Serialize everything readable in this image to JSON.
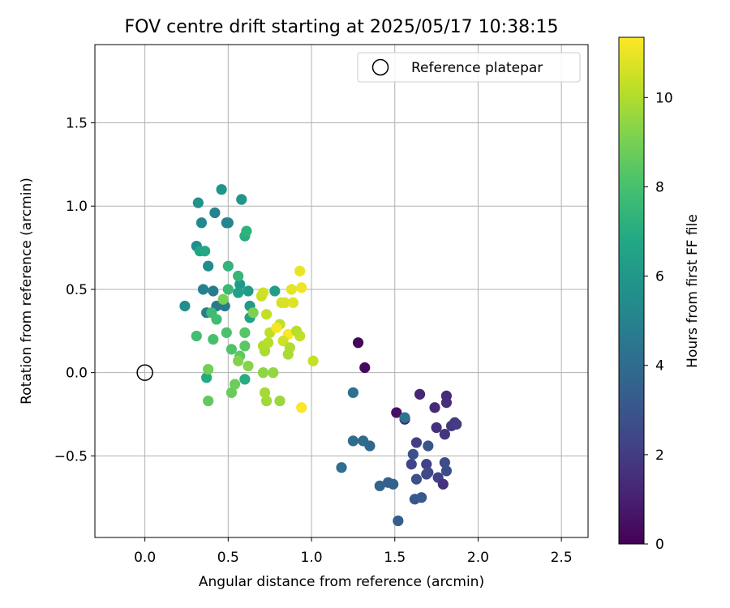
{
  "chart_data": {
    "type": "scatter",
    "title": "FOV centre drift starting at 2025/05/17 10:38:15",
    "xlabel": "Angular distance from reference (arcmin)",
    "ylabel": "Rotation from reference (arcmin)",
    "xlim": [
      -0.3,
      2.66
    ],
    "ylim": [
      -0.99,
      1.97
    ],
    "xticks": [
      {
        "value": 0.0,
        "label": "0.0"
      },
      {
        "value": 0.5,
        "label": "0.5"
      },
      {
        "value": 1.0,
        "label": "1.0"
      },
      {
        "value": 1.5,
        "label": "1.5"
      },
      {
        "value": 2.0,
        "label": "2.0"
      },
      {
        "value": 2.5,
        "label": "2.5"
      }
    ],
    "yticks": [
      {
        "value": -0.5,
        "label": "−0.5"
      },
      {
        "value": 0.0,
        "label": "0.0"
      },
      {
        "value": 0.5,
        "label": "0.5"
      },
      {
        "value": 1.0,
        "label": "1.0"
      },
      {
        "value": 1.5,
        "label": "1.5"
      }
    ],
    "grid": true,
    "legend": {
      "placement": "upper right",
      "entries": [
        "Reference platepar"
      ]
    },
    "reference_point": {
      "x": 0.0,
      "y": 0.0,
      "label": "Reference platepar",
      "marker": "open-circle",
      "color": "#000000"
    },
    "colorbar": {
      "label": "Hours from first FF file",
      "range": [
        0,
        11.35
      ],
      "ticks": [
        {
          "value": 0,
          "label": "0"
        },
        {
          "value": 2,
          "label": "2"
        },
        {
          "value": 4,
          "label": "4"
        },
        {
          "value": 6,
          "label": "6"
        },
        {
          "value": 8,
          "label": "8"
        },
        {
          "value": 10,
          "label": "10"
        }
      ],
      "colormap": "viridis",
      "stops": [
        "#440154",
        "#482475",
        "#414487",
        "#355f8d",
        "#2a788e",
        "#21918c",
        "#22a884",
        "#44bf70",
        "#7ad151",
        "#bddf26",
        "#fde725"
      ]
    },
    "points": [
      {
        "x": 1.28,
        "y": 0.18,
        "c": 0.2
      },
      {
        "x": 1.32,
        "y": 0.03,
        "c": 0.3
      },
      {
        "x": 1.51,
        "y": -0.24,
        "c": 0.5
      },
      {
        "x": 1.56,
        "y": -0.28,
        "c": 1.0
      },
      {
        "x": 1.65,
        "y": -0.13,
        "c": 1.2
      },
      {
        "x": 1.74,
        "y": -0.21,
        "c": 1.3
      },
      {
        "x": 1.81,
        "y": -0.14,
        "c": 1.4
      },
      {
        "x": 1.81,
        "y": -0.18,
        "c": 1.5
      },
      {
        "x": 1.75,
        "y": -0.33,
        "c": 1.6
      },
      {
        "x": 1.8,
        "y": -0.37,
        "c": 1.7
      },
      {
        "x": 1.84,
        "y": -0.32,
        "c": 1.8
      },
      {
        "x": 1.86,
        "y": -0.3,
        "c": 1.9
      },
      {
        "x": 1.87,
        "y": -0.31,
        "c": 2.0
      },
      {
        "x": 1.63,
        "y": -0.42,
        "c": 2.1
      },
      {
        "x": 1.69,
        "y": -0.55,
        "c": 2.2
      },
      {
        "x": 1.6,
        "y": -0.55,
        "c": 2.3
      },
      {
        "x": 1.7,
        "y": -0.6,
        "c": 2.4
      },
      {
        "x": 1.69,
        "y": -0.61,
        "c": 2.5
      },
      {
        "x": 1.76,
        "y": -0.63,
        "c": 2.2
      },
      {
        "x": 1.79,
        "y": -0.67,
        "c": 1.6
      },
      {
        "x": 1.8,
        "y": -0.54,
        "c": 2.6
      },
      {
        "x": 1.81,
        "y": -0.59,
        "c": 2.7
      },
      {
        "x": 1.63,
        "y": -0.64,
        "c": 2.8
      },
      {
        "x": 1.61,
        "y": -0.49,
        "c": 2.9
      },
      {
        "x": 1.7,
        "y": -0.44,
        "c": 3.0
      },
      {
        "x": 1.62,
        "y": -0.76,
        "c": 3.1
      },
      {
        "x": 1.66,
        "y": -0.75,
        "c": 3.2
      },
      {
        "x": 1.52,
        "y": -0.89,
        "c": 3.3
      },
      {
        "x": 1.46,
        "y": -0.66,
        "c": 3.4
      },
      {
        "x": 1.49,
        "y": -0.67,
        "c": 3.5
      },
      {
        "x": 1.41,
        "y": -0.68,
        "c": 3.7
      },
      {
        "x": 1.35,
        "y": -0.44,
        "c": 3.8
      },
      {
        "x": 1.31,
        "y": -0.41,
        "c": 3.9
      },
      {
        "x": 1.25,
        "y": -0.41,
        "c": 4.0
      },
      {
        "x": 1.18,
        "y": -0.57,
        "c": 4.1
      },
      {
        "x": 1.25,
        "y": -0.12,
        "c": 4.2
      },
      {
        "x": 1.56,
        "y": -0.27,
        "c": 4.3
      },
      {
        "x": 0.43,
        "y": 0.4,
        "c": 4.5
      },
      {
        "x": 0.48,
        "y": 0.4,
        "c": 4.6
      },
      {
        "x": 0.41,
        "y": 0.49,
        "c": 4.7
      },
      {
        "x": 0.37,
        "y": 0.36,
        "c": 4.8
      },
      {
        "x": 0.35,
        "y": 0.5,
        "c": 4.9
      },
      {
        "x": 0.42,
        "y": 0.96,
        "c": 5.0
      },
      {
        "x": 0.49,
        "y": 0.9,
        "c": 5.1
      },
      {
        "x": 0.5,
        "y": 0.9,
        "c": 5.2
      },
      {
        "x": 0.34,
        "y": 0.9,
        "c": 5.3
      },
      {
        "x": 0.38,
        "y": 0.64,
        "c": 5.4
      },
      {
        "x": 0.31,
        "y": 0.76,
        "c": 5.5
      },
      {
        "x": 0.24,
        "y": 0.4,
        "c": 5.6
      },
      {
        "x": 0.32,
        "y": 1.02,
        "c": 5.7
      },
      {
        "x": 0.46,
        "y": 1.1,
        "c": 5.8
      },
      {
        "x": 0.58,
        "y": 1.04,
        "c": 5.9
      },
      {
        "x": 0.57,
        "y": 0.53,
        "c": 6.0
      },
      {
        "x": 0.63,
        "y": 0.4,
        "c": 6.1
      },
      {
        "x": 0.62,
        "y": 0.49,
        "c": 6.2
      },
      {
        "x": 0.78,
        "y": 0.49,
        "c": 6.3
      },
      {
        "x": 0.56,
        "y": 0.48,
        "c": 6.4
      },
      {
        "x": 0.63,
        "y": 0.33,
        "c": 6.5
      },
      {
        "x": 0.33,
        "y": 0.73,
        "c": 6.6
      },
      {
        "x": 0.36,
        "y": 0.73,
        "c": 6.8
      },
      {
        "x": 0.37,
        "y": -0.03,
        "c": 6.9
      },
      {
        "x": 0.6,
        "y": -0.04,
        "c": 7.0
      },
      {
        "x": 0.6,
        "y": 0.82,
        "c": 7.1
      },
      {
        "x": 0.61,
        "y": 0.85,
        "c": 7.3
      },
      {
        "x": 0.5,
        "y": 0.64,
        "c": 7.4
      },
      {
        "x": 0.56,
        "y": 0.58,
        "c": 7.5
      },
      {
        "x": 0.5,
        "y": 0.5,
        "c": 7.6
      },
      {
        "x": 0.4,
        "y": 0.36,
        "c": 7.7
      },
      {
        "x": 0.43,
        "y": 0.32,
        "c": 7.8
      },
      {
        "x": 0.31,
        "y": 0.22,
        "c": 7.9
      },
      {
        "x": 0.41,
        "y": 0.2,
        "c": 8.0
      },
      {
        "x": 0.49,
        "y": 0.24,
        "c": 8.1
      },
      {
        "x": 0.52,
        "y": 0.14,
        "c": 8.2
      },
      {
        "x": 0.6,
        "y": 0.24,
        "c": 8.3
      },
      {
        "x": 0.6,
        "y": 0.16,
        "c": 8.4
      },
      {
        "x": 0.57,
        "y": 0.1,
        "c": 8.5
      },
      {
        "x": 0.38,
        "y": -0.17,
        "c": 8.6
      },
      {
        "x": 0.52,
        "y": -0.12,
        "c": 8.7
      },
      {
        "x": 0.54,
        "y": -0.07,
        "c": 8.8
      },
      {
        "x": 0.38,
        "y": 0.02,
        "c": 8.9
      },
      {
        "x": 0.47,
        "y": 0.44,
        "c": 9.0
      },
      {
        "x": 0.65,
        "y": 0.36,
        "c": 9.1
      },
      {
        "x": 0.56,
        "y": 0.07,
        "c": 9.2
      },
      {
        "x": 0.62,
        "y": 0.04,
        "c": 9.3
      },
      {
        "x": 0.71,
        "y": 0.0,
        "c": 9.4
      },
      {
        "x": 0.77,
        "y": 0.0,
        "c": 9.5
      },
      {
        "x": 0.81,
        "y": -0.17,
        "c": 9.6
      },
      {
        "x": 0.73,
        "y": -0.17,
        "c": 9.7
      },
      {
        "x": 0.72,
        "y": -0.12,
        "c": 9.8
      },
      {
        "x": 0.72,
        "y": 0.13,
        "c": 9.9
      },
      {
        "x": 0.71,
        "y": 0.16,
        "c": 10.0
      },
      {
        "x": 0.74,
        "y": 0.18,
        "c": 10.1
      },
      {
        "x": 0.75,
        "y": 0.24,
        "c": 10.2
      },
      {
        "x": 0.73,
        "y": 0.35,
        "c": 10.3
      },
      {
        "x": 0.7,
        "y": 0.46,
        "c": 10.4
      },
      {
        "x": 0.71,
        "y": 0.48,
        "c": 10.5
      },
      {
        "x": 0.82,
        "y": 0.42,
        "c": 10.6
      },
      {
        "x": 0.84,
        "y": 0.42,
        "c": 10.7
      },
      {
        "x": 0.89,
        "y": 0.42,
        "c": 10.8
      },
      {
        "x": 0.88,
        "y": 0.5,
        "c": 10.9
      },
      {
        "x": 0.93,
        "y": 0.61,
        "c": 11.0
      },
      {
        "x": 0.94,
        "y": 0.51,
        "c": 11.1
      },
      {
        "x": 0.81,
        "y": 0.29,
        "c": 10.2
      },
      {
        "x": 0.79,
        "y": 0.27,
        "c": 11.2
      },
      {
        "x": 0.86,
        "y": 0.23,
        "c": 11.3
      },
      {
        "x": 0.83,
        "y": 0.19,
        "c": 10.5
      },
      {
        "x": 0.87,
        "y": 0.15,
        "c": 10.0
      },
      {
        "x": 0.86,
        "y": 0.11,
        "c": 9.9
      },
      {
        "x": 0.93,
        "y": 0.22,
        "c": 10.3
      },
      {
        "x": 0.91,
        "y": 0.25,
        "c": 10.1
      },
      {
        "x": 1.01,
        "y": 0.07,
        "c": 10.4
      },
      {
        "x": 0.94,
        "y": -0.21,
        "c": 11.3
      }
    ]
  }
}
